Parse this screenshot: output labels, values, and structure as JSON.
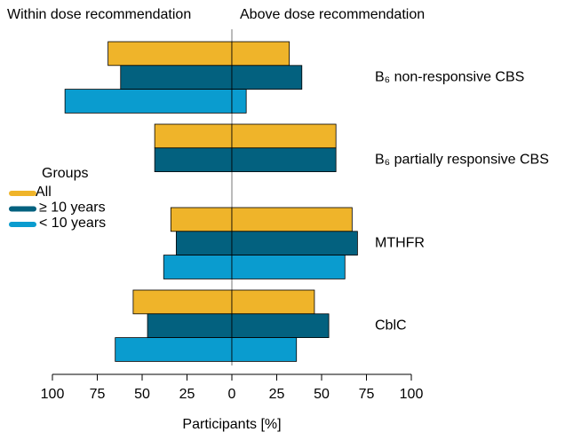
{
  "chart_data": {
    "type": "diverging-bar",
    "header_left": "Within dose recommendation",
    "header_right": "Above dose recommendation",
    "xlabel": "Participants [%]",
    "legend_title": "Groups",
    "categories": [
      "B₆ non-responsive CBS",
      "B₆ partially responsive CBS",
      "MTHFR",
      "CblC"
    ],
    "series": [
      {
        "name": "All",
        "color": "#efb42a",
        "values_within": [
          -69,
          -43,
          -34,
          -55
        ],
        "values_above": [
          32,
          58,
          67,
          46
        ]
      },
      {
        "name": "≥ 10 years",
        "color": "#03617f",
        "values_within": [
          -62,
          -43,
          -31,
          -47
        ],
        "values_above": [
          39,
          58,
          70,
          54
        ]
      },
      {
        "name": "< 10 years",
        "color": "#0a9ccf",
        "values_within": [
          -93,
          null,
          -38,
          -65
        ],
        "values_above": [
          8,
          null,
          63,
          36
        ]
      }
    ],
    "xlim": [
      -100,
      100
    ],
    "xticks": [
      {
        "value": -100,
        "label": "100"
      },
      {
        "value": -75,
        "label": "75"
      },
      {
        "value": -50,
        "label": "50"
      },
      {
        "value": -25,
        "label": "25"
      },
      0,
      25,
      50,
      75,
      100
    ]
  }
}
